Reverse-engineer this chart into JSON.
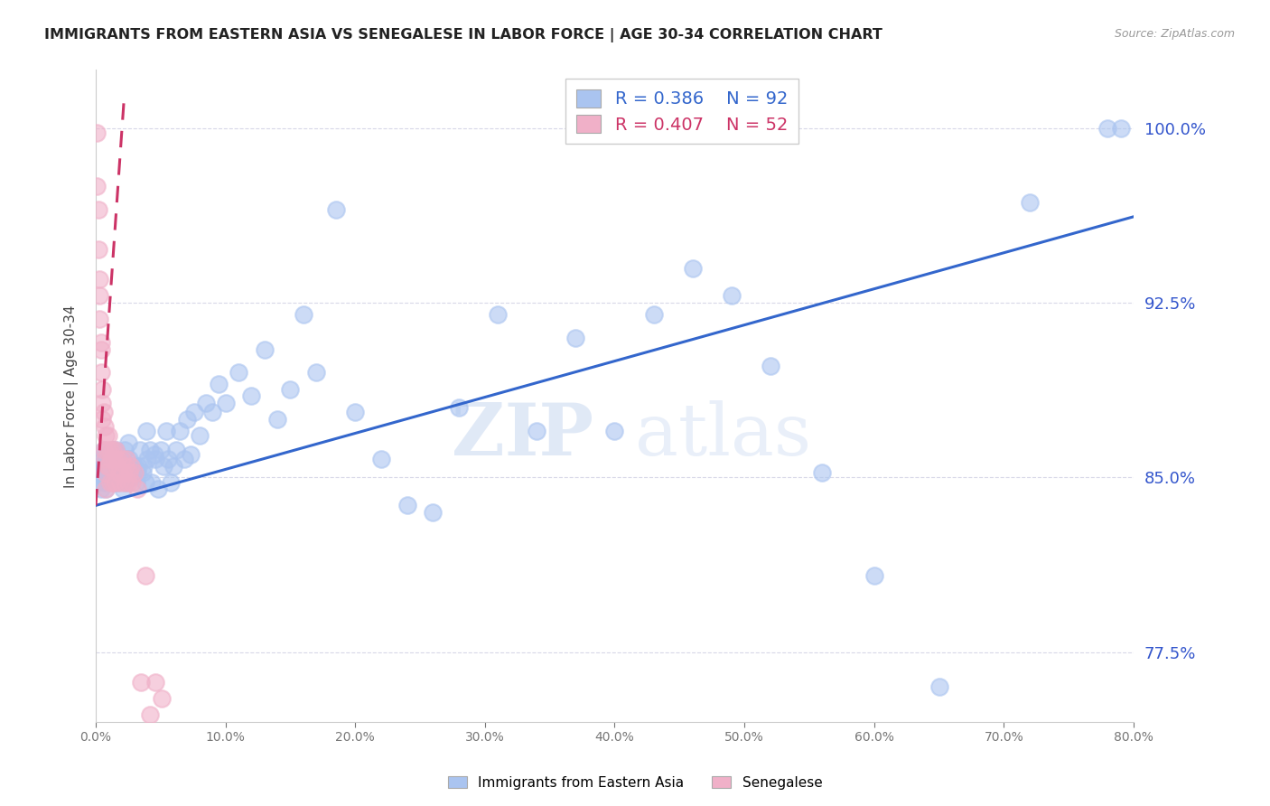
{
  "title": "IMMIGRANTS FROM EASTERN ASIA VS SENEGALESE IN LABOR FORCE | AGE 30-34 CORRELATION CHART",
  "source": "Source: ZipAtlas.com",
  "ylabel": "In Labor Force | Age 30-34",
  "legend_label_blue": "Immigrants from Eastern Asia",
  "legend_label_pink": "Senegalese",
  "R_blue": 0.386,
  "N_blue": 92,
  "R_pink": 0.407,
  "N_pink": 52,
  "blue_color": "#aac4f0",
  "pink_color": "#f0b0c8",
  "blue_line_color": "#3366cc",
  "pink_line_color": "#cc3366",
  "xlim": [
    0.0,
    0.8
  ],
  "ylim": [
    0.745,
    1.025
  ],
  "yticks": [
    0.775,
    0.85,
    0.925,
    1.0
  ],
  "blue_x": [
    0.001,
    0.002,
    0.003,
    0.004,
    0.004,
    0.005,
    0.006,
    0.006,
    0.007,
    0.007,
    0.008,
    0.008,
    0.009,
    0.009,
    0.01,
    0.011,
    0.012,
    0.013,
    0.014,
    0.015,
    0.016,
    0.017,
    0.018,
    0.019,
    0.02,
    0.021,
    0.022,
    0.023,
    0.024,
    0.025,
    0.026,
    0.027,
    0.028,
    0.03,
    0.031,
    0.032,
    0.033,
    0.034,
    0.036,
    0.037,
    0.038,
    0.039,
    0.04,
    0.042,
    0.043,
    0.045,
    0.046,
    0.048,
    0.05,
    0.052,
    0.054,
    0.056,
    0.058,
    0.06,
    0.062,
    0.065,
    0.068,
    0.07,
    0.073,
    0.076,
    0.08,
    0.085,
    0.09,
    0.095,
    0.1,
    0.11,
    0.12,
    0.13,
    0.14,
    0.15,
    0.16,
    0.17,
    0.185,
    0.2,
    0.22,
    0.24,
    0.26,
    0.28,
    0.31,
    0.34,
    0.37,
    0.4,
    0.43,
    0.46,
    0.49,
    0.52,
    0.56,
    0.6,
    0.65,
    0.72,
    0.78,
    0.79
  ],
  "blue_y": [
    0.848,
    0.852,
    0.855,
    0.858,
    0.845,
    0.855,
    0.85,
    0.862,
    0.848,
    0.858,
    0.852,
    0.845,
    0.85,
    0.86,
    0.855,
    0.858,
    0.85,
    0.862,
    0.848,
    0.862,
    0.86,
    0.848,
    0.858,
    0.852,
    0.858,
    0.845,
    0.862,
    0.848,
    0.858,
    0.865,
    0.858,
    0.85,
    0.855,
    0.855,
    0.848,
    0.852,
    0.855,
    0.862,
    0.852,
    0.855,
    0.848,
    0.87,
    0.858,
    0.862,
    0.848,
    0.86,
    0.858,
    0.845,
    0.862,
    0.855,
    0.87,
    0.858,
    0.848,
    0.855,
    0.862,
    0.87,
    0.858,
    0.875,
    0.86,
    0.878,
    0.868,
    0.882,
    0.878,
    0.89,
    0.882,
    0.895,
    0.885,
    0.905,
    0.875,
    0.888,
    0.92,
    0.895,
    0.965,
    0.878,
    0.858,
    0.838,
    0.835,
    0.88,
    0.92,
    0.87,
    0.91,
    0.87,
    0.92,
    0.94,
    0.928,
    0.898,
    0.852,
    0.808,
    0.76,
    0.968,
    1.0,
    1.0
  ],
  "pink_x": [
    0.001,
    0.001,
    0.002,
    0.002,
    0.003,
    0.003,
    0.003,
    0.004,
    0.004,
    0.004,
    0.005,
    0.005,
    0.005,
    0.006,
    0.006,
    0.007,
    0.007,
    0.007,
    0.008,
    0.008,
    0.009,
    0.009,
    0.01,
    0.01,
    0.011,
    0.011,
    0.012,
    0.013,
    0.013,
    0.014,
    0.015,
    0.015,
    0.016,
    0.017,
    0.018,
    0.019,
    0.02,
    0.021,
    0.022,
    0.023,
    0.024,
    0.025,
    0.026,
    0.027,
    0.028,
    0.03,
    0.032,
    0.035,
    0.038,
    0.042,
    0.046,
    0.051
  ],
  "pink_y": [
    0.998,
    0.975,
    0.965,
    0.948,
    0.935,
    0.928,
    0.918,
    0.908,
    0.905,
    0.895,
    0.888,
    0.882,
    0.875,
    0.878,
    0.862,
    0.872,
    0.858,
    0.852,
    0.868,
    0.845,
    0.862,
    0.855,
    0.868,
    0.855,
    0.862,
    0.848,
    0.858,
    0.862,
    0.848,
    0.858,
    0.862,
    0.848,
    0.855,
    0.858,
    0.852,
    0.848,
    0.858,
    0.852,
    0.848,
    0.855,
    0.858,
    0.848,
    0.852,
    0.855,
    0.848,
    0.852,
    0.845,
    0.762,
    0.808,
    0.748,
    0.762,
    0.755
  ],
  "watermark_zip": "ZIP",
  "watermark_atlas": "atlas",
  "background_color": "#ffffff",
  "grid_color": "#d8d8e8"
}
